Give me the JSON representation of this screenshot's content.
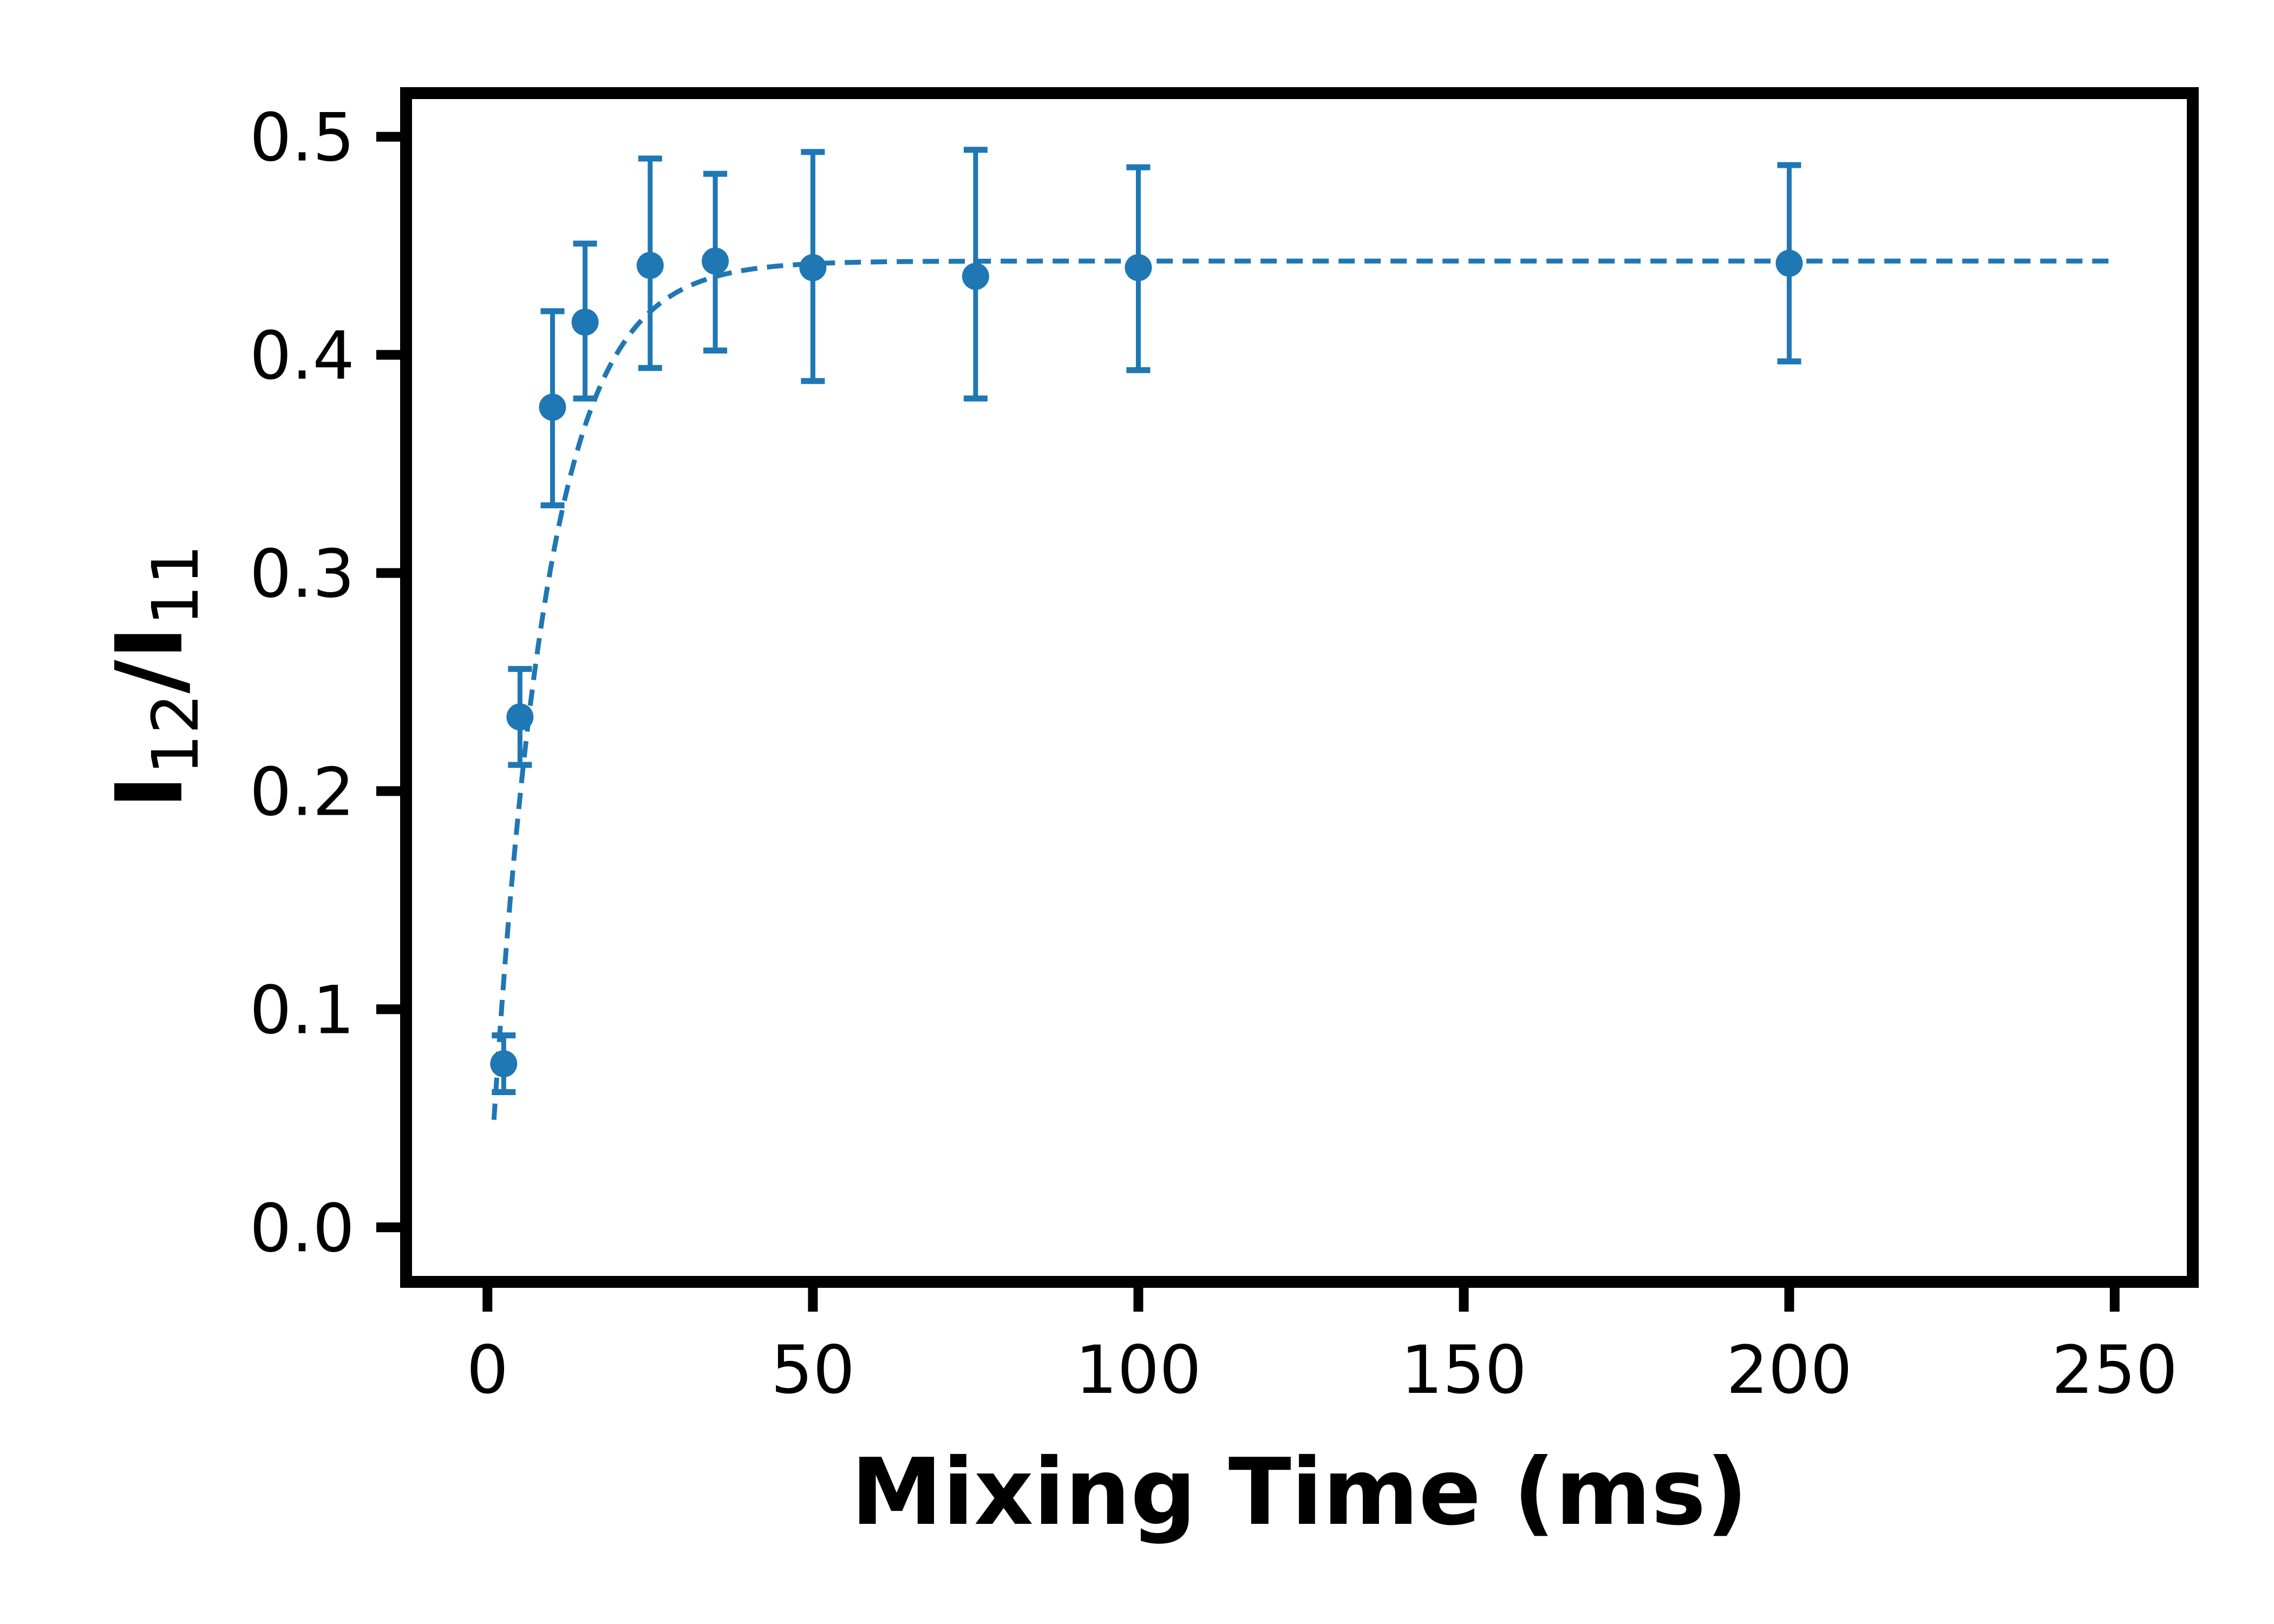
{
  "chart_data": {
    "type": "scatter",
    "xlabel": "Mixing Time (ms)",
    "ylabel": {
      "symbol1": "I",
      "sub1": "12",
      "separator": "/",
      "symbol2": "I",
      "sub2": "11"
    },
    "xlim": [
      -12.5,
      262
    ],
    "ylim": [
      -0.025,
      0.52
    ],
    "x_ticks": [
      0,
      50,
      100,
      150,
      200,
      250
    ],
    "x_tick_labels": [
      "0",
      "50",
      "100",
      "150",
      "200",
      "250"
    ],
    "y_ticks": [
      0.0,
      0.1,
      0.2,
      0.3,
      0.4,
      0.5
    ],
    "y_tick_labels": [
      "0.0",
      "0.1",
      "0.2",
      "0.3",
      "0.4",
      "0.5"
    ],
    "grid": false,
    "series": [
      {
        "kind": "points_with_error",
        "color": "#1f77b4",
        "x": [
          2.5,
          5,
          10,
          15,
          25,
          35,
          50,
          75,
          100,
          200
        ],
        "y": [
          0.075,
          0.234,
          0.376,
          0.415,
          0.441,
          0.443,
          0.44,
          0.436,
          0.44,
          0.442
        ],
        "yerr_low": [
          0.062,
          0.212,
          0.331,
          0.38,
          0.394,
          0.402,
          0.388,
          0.38,
          0.393,
          0.397
        ],
        "yerr_high": [
          0.088,
          0.256,
          0.42,
          0.451,
          0.49,
          0.483,
          0.493,
          0.494,
          0.486,
          0.487
        ]
      },
      {
        "kind": "fit_curve",
        "color": "#1f77b4",
        "line_style": "dashed",
        "model": "exponential_rise",
        "plateau": 0.443,
        "rate_constant": 0.118,
        "x_range": [
          1,
          250
        ]
      }
    ]
  }
}
